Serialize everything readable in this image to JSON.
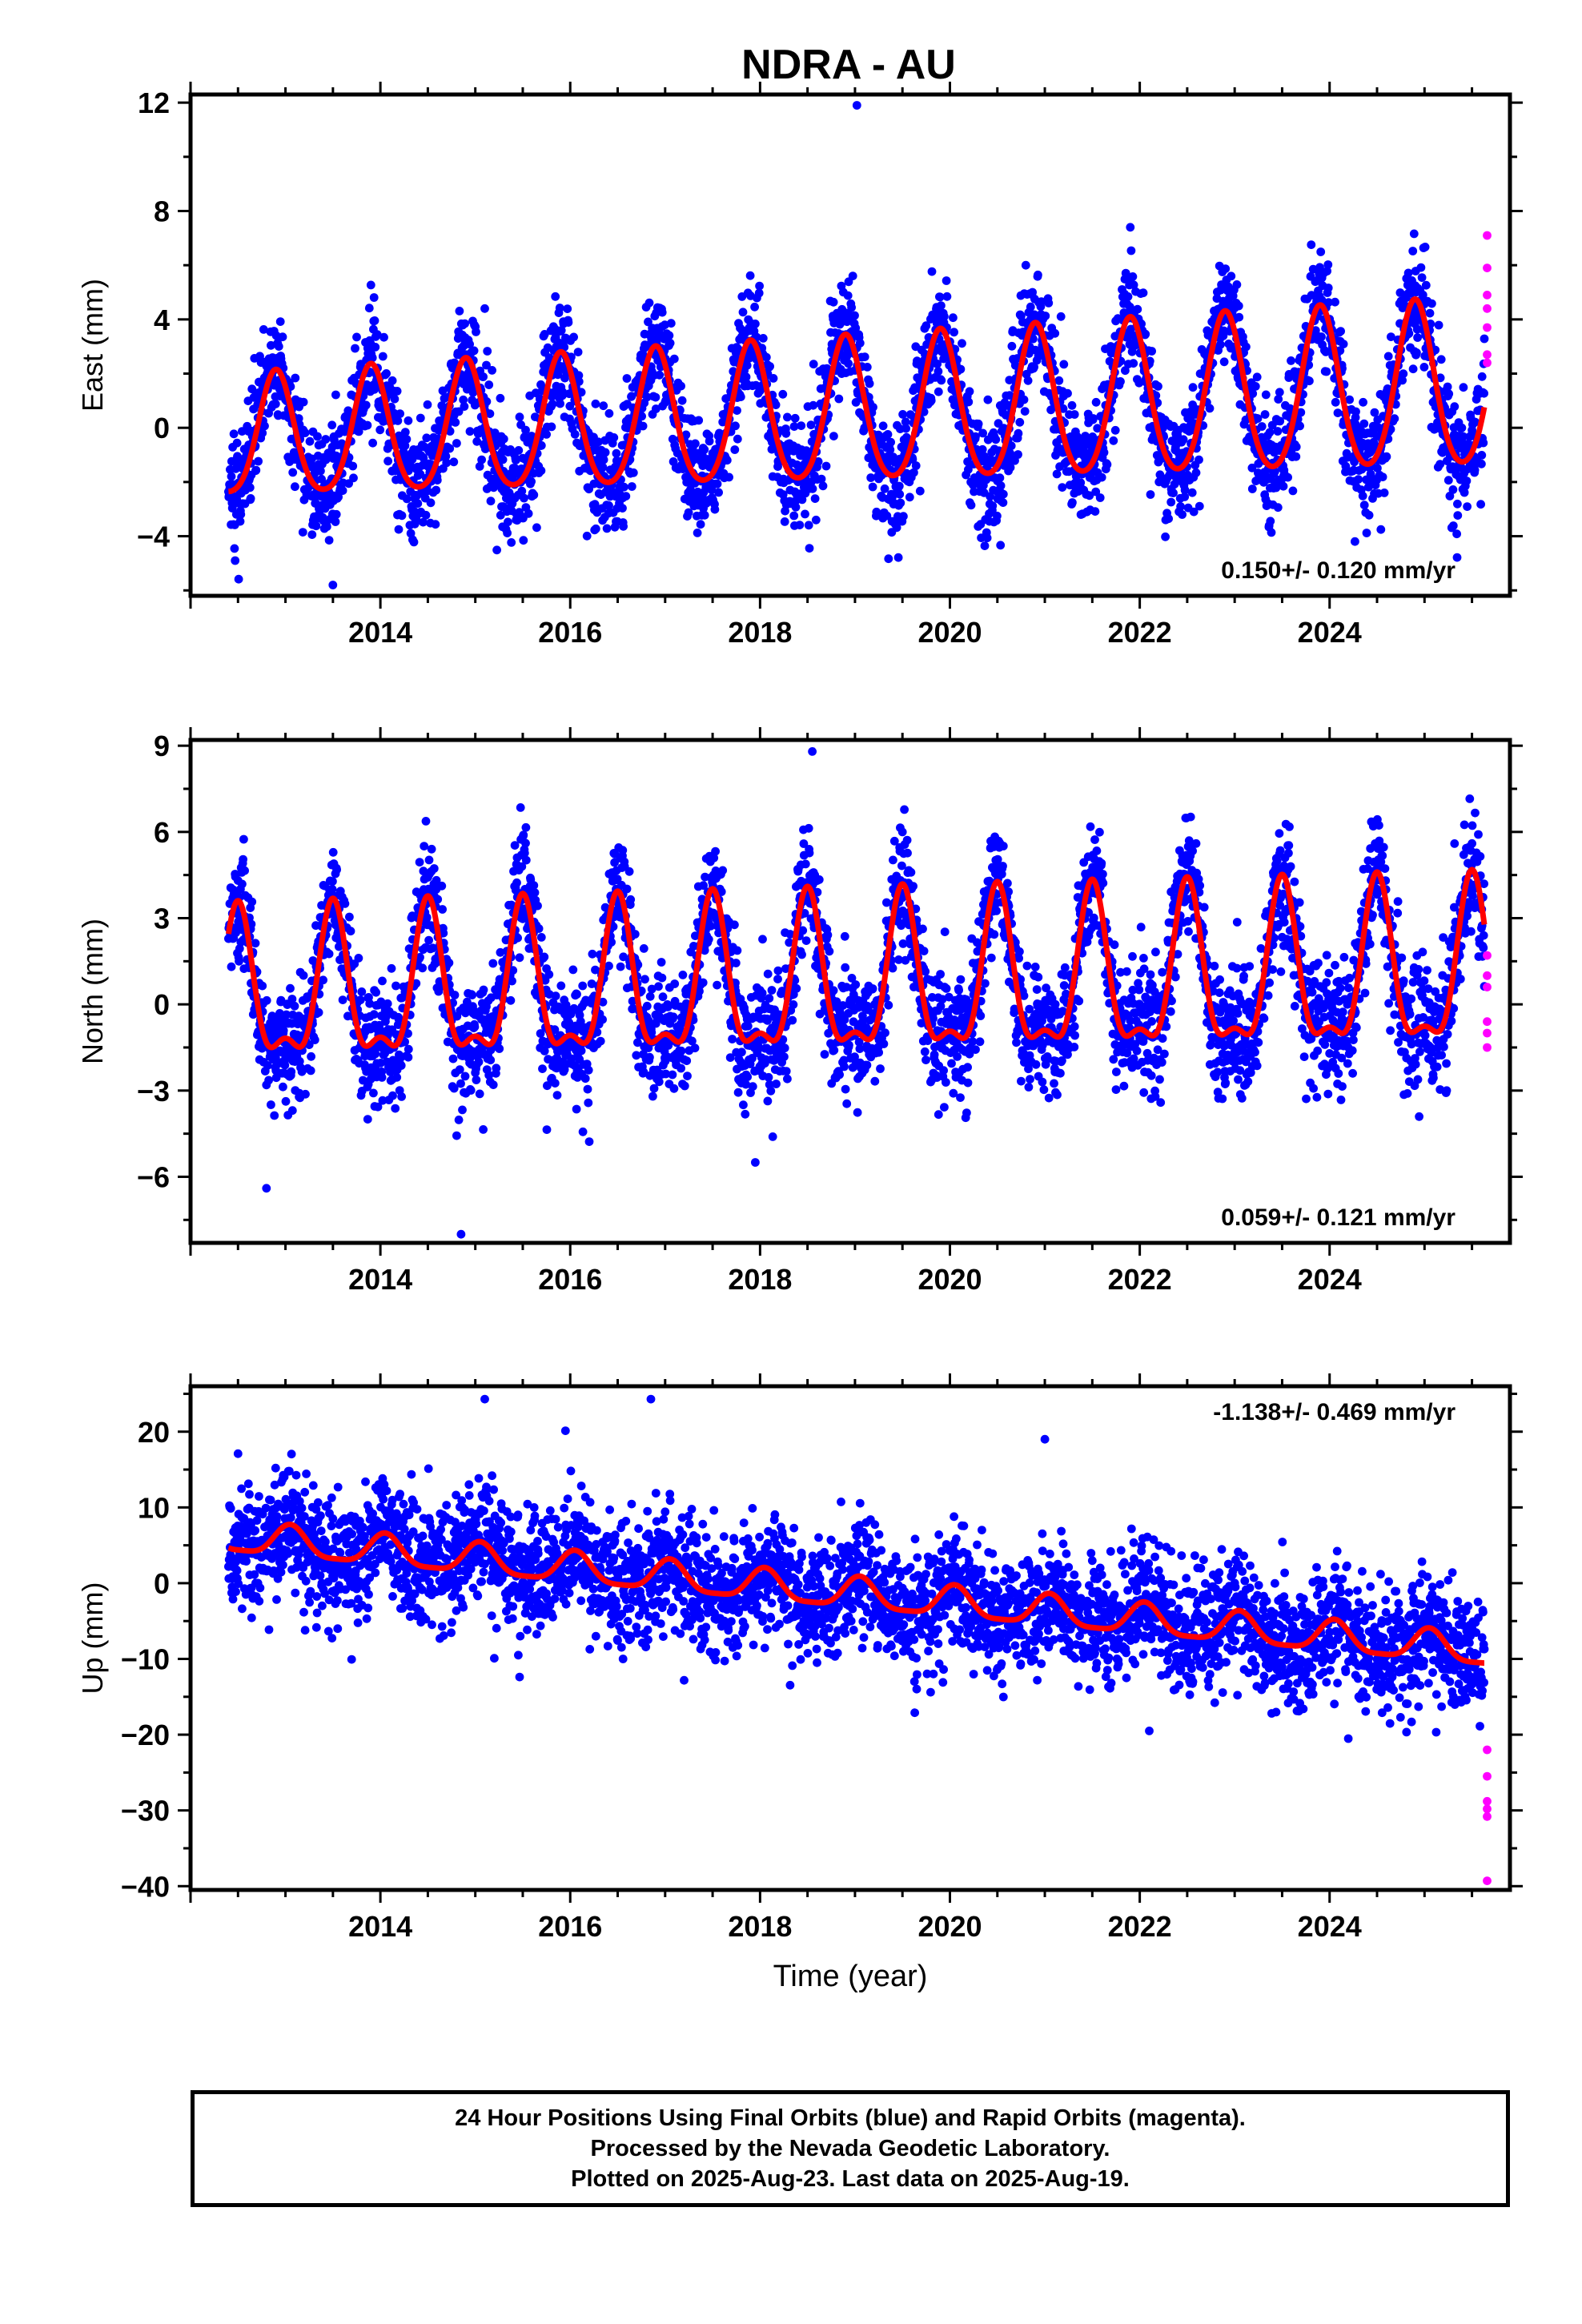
{
  "title": "NDRA - AU",
  "colors": {
    "final_orbits": "#0000ff",
    "rapid_orbits": "#ff00ff",
    "model_fit": "#ff0000",
    "frame": "#000000"
  },
  "xlabel": "Time (year)",
  "footer": {
    "line1": "24 Hour Positions Using Final Orbits (blue) and Rapid Orbits (magenta).",
    "line2": "Processed by the Nevada Geodetic Laboratory.",
    "line3": "Plotted on 2025-Aug-23. Last data on 2025-Aug-19."
  },
  "chart_data": [
    {
      "type": "scatter",
      "component": "East",
      "ylabel": "East (mm)",
      "rate_label": "0.150+/- 0.120 mm/yr",
      "rate_position": "bottom-right",
      "xlim": [
        2012.0,
        2025.9
      ],
      "ylim": [
        -6.2,
        12.3
      ],
      "xticks": [
        2014,
        2016,
        2018,
        2020,
        2022,
        2024
      ],
      "yticks": [
        -4,
        0,
        4,
        8,
        12
      ],
      "start": 2012.4,
      "end": 2025.63,
      "model": {
        "offset": -0.5,
        "rate": 0.15,
        "annual_amp": 2.2,
        "annual_phase_peak": 0.9,
        "semiannual_amp": 0.35,
        "amp_growth": 0.03
      },
      "scatter_sd": 1.05,
      "outliers": [
        [
          2019.02,
          11.9
        ],
        [
          2015.1,
          4.4
        ],
        [
          2021.9,
          7.4
        ],
        [
          2013.5,
          -5.8
        ]
      ],
      "rapid_points": [
        [
          2025.66,
          7.1
        ],
        [
          2025.66,
          5.9
        ],
        [
          2025.66,
          4.9
        ],
        [
          2025.66,
          4.4
        ],
        [
          2025.66,
          3.7
        ],
        [
          2025.66,
          2.7
        ],
        [
          2025.66,
          2.4
        ]
      ],
      "series": [
        {
          "name": "Final Orbits",
          "color": "#0000ff"
        },
        {
          "name": "Rapid Orbits",
          "color": "#ff00ff"
        }
      ]
    },
    {
      "type": "scatter",
      "component": "North",
      "ylabel": "North (mm)",
      "rate_label": "0.059+/- 0.121 mm/yr",
      "rate_position": "bottom-right",
      "xlim": [
        2012.0,
        2025.9
      ],
      "ylim": [
        -8.3,
        9.2
      ],
      "xticks": [
        2014,
        2016,
        2018,
        2020,
        2022,
        2024
      ],
      "yticks": [
        -6,
        -3,
        0,
        3,
        6,
        9
      ],
      "start": 2012.4,
      "end": 2025.63,
      "model": {
        "offset": 0.2,
        "rate": 0.059,
        "annual_amp": 2.4,
        "annual_phase_peak": 0.5,
        "semiannual_amp": 1.0,
        "amp_growth": 0.01
      },
      "scatter_sd": 1.05,
      "outliers": [
        [
          2018.55,
          8.8
        ],
        [
          2014.85,
          -8.0
        ],
        [
          2012.8,
          -6.4
        ],
        [
          2017.95,
          -5.5
        ]
      ],
      "rapid_points": [
        [
          2025.66,
          1.7
        ],
        [
          2025.66,
          1.0
        ],
        [
          2025.66,
          0.6
        ],
        [
          2025.66,
          -0.6
        ],
        [
          2025.66,
          -1.0
        ],
        [
          2025.66,
          -1.5
        ]
      ],
      "series": [
        {
          "name": "Final Orbits",
          "color": "#0000ff"
        },
        {
          "name": "Rapid Orbits",
          "color": "#ff00ff"
        }
      ]
    },
    {
      "type": "scatter",
      "component": "Up",
      "ylabel": "Up (mm)",
      "rate_label": "-1.138+/- 0.469 mm/yr",
      "rate_position": "top-right",
      "xlim": [
        2012.0,
        2025.9
      ],
      "ylim": [
        -40.5,
        26.0
      ],
      "xticks": [
        2014,
        2016,
        2018,
        2020,
        2022,
        2024
      ],
      "yticks": [
        -40,
        -30,
        -20,
        -10,
        0,
        10,
        20
      ],
      "start": 2012.4,
      "end": 2025.63,
      "model": {
        "offset": 6.0,
        "rate": -1.138,
        "annual_amp": 2.0,
        "annual_phase_peak": 0.05,
        "semiannual_amp": 0.5,
        "amp_growth": 0.0
      },
      "scatter_sd": 4.0,
      "outliers": [
        [
          2015.1,
          24.3
        ],
        [
          2016.85,
          24.3
        ],
        [
          2012.5,
          17.1
        ],
        [
          2022.1,
          -19.5
        ],
        [
          2021.0,
          19.0
        ]
      ],
      "rapid_points": [
        [
          2025.66,
          -22.0
        ],
        [
          2025.66,
          -25.5
        ],
        [
          2025.66,
          -28.8
        ],
        [
          2025.66,
          -29.8
        ],
        [
          2025.66,
          -30.8
        ],
        [
          2025.66,
          -39.3
        ]
      ],
      "series": [
        {
          "name": "Final Orbits",
          "color": "#0000ff"
        },
        {
          "name": "Rapid Orbits",
          "color": "#ff00ff"
        }
      ]
    }
  ]
}
